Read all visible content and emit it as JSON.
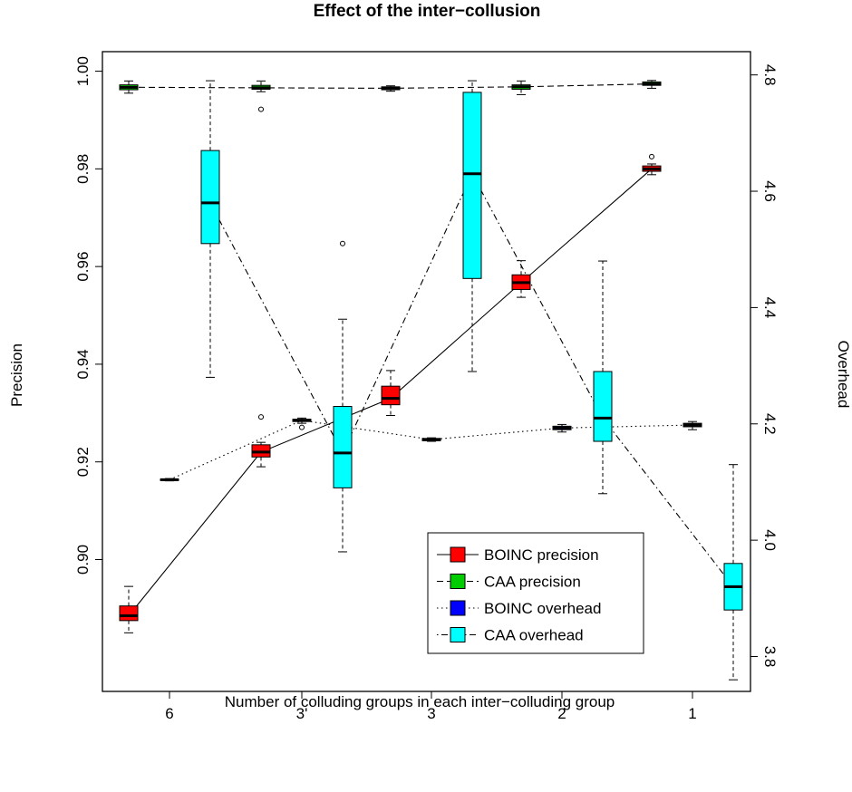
{
  "chart_data": {
    "type": "boxplot",
    "title": "Effect of the inter−collusion",
    "xlabel": "Number of colluding groups in each inter−colluding group",
    "ylabel_left": "Precision",
    "ylabel_right": "Overhead",
    "categories": [
      "6",
      "3'",
      "3",
      "2",
      "1"
    ],
    "ylim_left": [
      0.873,
      1.004
    ],
    "ylim_right": [
      3.74,
      4.84
    ],
    "yticks_left": [
      "0.90",
      "0.92",
      "0.94",
      "0.96",
      "0.98",
      "1.00"
    ],
    "yticks_right": [
      "3.8",
      "4.0",
      "4.2",
      "4.4",
      "4.6",
      "4.8"
    ],
    "legend_position": "bottom-right",
    "series": [
      {
        "name": "BOINC precision",
        "axis": "left",
        "color": "#ff0000",
        "line": "solid",
        "offset": -1,
        "boxes": [
          {
            "min": 0.885,
            "q1": 0.8875,
            "median": 0.8885,
            "q3": 0.8905,
            "max": 0.8945,
            "outliers": []
          },
          {
            "min": 0.919,
            "q1": 0.921,
            "median": 0.922,
            "q3": 0.9235,
            "max": 0.924,
            "outliers": [
              0.9292
            ]
          },
          {
            "min": 0.9295,
            "q1": 0.9317,
            "median": 0.933,
            "q3": 0.9355,
            "max": 0.9387,
            "outliers": []
          },
          {
            "min": 0.9537,
            "q1": 0.9553,
            "median": 0.9567,
            "q3": 0.9583,
            "max": 0.9612,
            "outliers": []
          },
          {
            "min": 0.9788,
            "q1": 0.9795,
            "median": 0.98,
            "q3": 0.9806,
            "max": 0.981,
            "outliers": [
              0.9825
            ]
          }
        ]
      },
      {
        "name": "CAA precision",
        "axis": "left",
        "color": "#00cc00",
        "line": "dashed",
        "offset": -1,
        "boxes": [
          {
            "min": 0.9955,
            "q1": 0.9962,
            "median": 0.9967,
            "q3": 0.9972,
            "max": 0.998,
            "outliers": []
          },
          {
            "min": 0.9958,
            "q1": 0.9963,
            "median": 0.9966,
            "q3": 0.9971,
            "max": 0.998,
            "outliers": [
              0.9922
            ]
          },
          {
            "min": 0.9959,
            "q1": 0.9962,
            "median": 0.9965,
            "q3": 0.9968,
            "max": 0.997,
            "outliers": []
          },
          {
            "min": 0.9952,
            "q1": 0.9963,
            "median": 0.9968,
            "q3": 0.9972,
            "max": 0.998,
            "outliers": []
          },
          {
            "min": 0.9965,
            "q1": 0.9971,
            "median": 0.9974,
            "q3": 0.9978,
            "max": 0.9981,
            "outliers": []
          }
        ]
      },
      {
        "name": "BOINC overhead",
        "axis": "right",
        "color": "#0000ff",
        "line": "dotted",
        "offset": 0,
        "boxes": [
          {
            "min": 4.102,
            "q1": 4.103,
            "median": 4.104,
            "q3": 4.105,
            "max": 4.106,
            "outliers": []
          },
          {
            "min": 4.201,
            "q1": 4.204,
            "median": 4.206,
            "q3": 4.208,
            "max": 4.21,
            "outliers": [
              4.194
            ]
          },
          {
            "min": 4.17,
            "q1": 4.171,
            "median": 4.173,
            "q3": 4.175,
            "max": 4.176,
            "outliers": []
          },
          {
            "min": 4.186,
            "q1": 4.19,
            "median": 4.193,
            "q3": 4.196,
            "max": 4.199,
            "outliers": []
          },
          {
            "min": 4.19,
            "q1": 4.195,
            "median": 4.198,
            "q3": 4.201,
            "max": 4.204,
            "outliers": []
          }
        ]
      },
      {
        "name": "CAA overhead",
        "axis": "right",
        "color": "#00ffff",
        "line": "dotdash",
        "offset": 1,
        "boxes": [
          {
            "min": 4.28,
            "q1": 4.51,
            "median": 4.58,
            "q3": 4.67,
            "max": 4.79,
            "outliers": []
          },
          {
            "min": 3.98,
            "q1": 4.09,
            "median": 4.15,
            "q3": 4.23,
            "max": 4.38,
            "outliers": [
              4.51
            ]
          },
          {
            "min": 4.29,
            "q1": 4.45,
            "median": 4.63,
            "q3": 4.77,
            "max": 4.79,
            "outliers": []
          },
          {
            "min": 4.08,
            "q1": 4.17,
            "median": 4.21,
            "q3": 4.29,
            "max": 4.48,
            "outliers": []
          },
          {
            "min": 3.76,
            "q1": 3.88,
            "median": 3.92,
            "q3": 3.96,
            "max": 4.13,
            "outliers": []
          }
        ]
      }
    ]
  }
}
